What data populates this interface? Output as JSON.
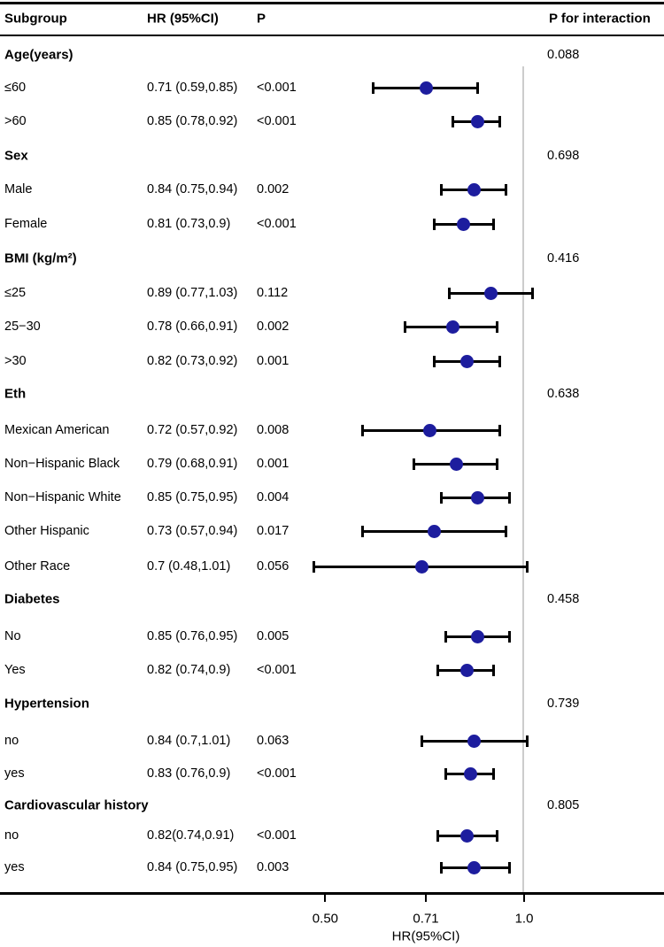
{
  "header": {
    "subgroup": "Subgroup",
    "hr_ci": "HR (95%CI)",
    "p": "P",
    "p_interaction": "P for interaction"
  },
  "chart_data": {
    "type": "forest",
    "x_scale": "log",
    "axis": {
      "label": "HR(95%CI)",
      "ticks": [
        {
          "value": 0.5,
          "label": "0.50"
        },
        {
          "value": 0.71,
          "label": "0.71"
        },
        {
          "value": 1.0,
          "label": "1.0"
        }
      ],
      "reference_line": 1.0,
      "xlim": [
        0.44,
        1.3
      ]
    },
    "rows": [
      {
        "type": "group",
        "label": "Age(years)",
        "p_interaction": "0.088"
      },
      {
        "type": "item",
        "label": "≤60",
        "hr_ci": "0.71 (0.59,0.85)",
        "p": "<0.001",
        "hr": 0.71,
        "ci_low": 0.59,
        "ci_high": 0.85
      },
      {
        "type": "item",
        "label": ">60",
        "hr_ci": "0.85 (0.78,0.92)",
        "p": "<0.001",
        "hr": 0.85,
        "ci_low": 0.78,
        "ci_high": 0.92
      },
      {
        "type": "group",
        "label": "Sex",
        "p_interaction": "0.698"
      },
      {
        "type": "item",
        "label": "Male",
        "hr_ci": "0.84 (0.75,0.94)",
        "p": "0.002",
        "hr": 0.84,
        "ci_low": 0.75,
        "ci_high": 0.94
      },
      {
        "type": "item",
        "label": "Female",
        "hr_ci": "0.81 (0.73,0.9)",
        "p": "<0.001",
        "hr": 0.81,
        "ci_low": 0.73,
        "ci_high": 0.9
      },
      {
        "type": "group",
        "label": "BMI (kg/m²)",
        "p_interaction": "0.416"
      },
      {
        "type": "item",
        "label": "≤25",
        "hr_ci": "0.89 (0.77,1.03)",
        "p": "0.112",
        "hr": 0.89,
        "ci_low": 0.77,
        "ci_high": 1.03
      },
      {
        "type": "item",
        "label": "25−30",
        "hr_ci": "0.78 (0.66,0.91)",
        "p": "0.002",
        "hr": 0.78,
        "ci_low": 0.66,
        "ci_high": 0.91
      },
      {
        "type": "item",
        "label": ">30",
        "hr_ci": "0.82 (0.73,0.92)",
        "p": "0.001",
        "hr": 0.82,
        "ci_low": 0.73,
        "ci_high": 0.92
      },
      {
        "type": "group",
        "label": "Eth",
        "p_interaction": "0.638"
      },
      {
        "type": "item",
        "label": "Mexican American",
        "hr_ci": "0.72 (0.57,0.92)",
        "p": "0.008",
        "hr": 0.72,
        "ci_low": 0.57,
        "ci_high": 0.92
      },
      {
        "type": "item",
        "label": "Non−Hispanic Black",
        "hr_ci": "0.79 (0.68,0.91)",
        "p": "0.001",
        "hr": 0.79,
        "ci_low": 0.68,
        "ci_high": 0.91
      },
      {
        "type": "item",
        "label": "Non−Hispanic White",
        "hr_ci": "0.85 (0.75,0.95)",
        "p": "0.004",
        "hr": 0.85,
        "ci_low": 0.75,
        "ci_high": 0.95
      },
      {
        "type": "item",
        "label": "Other Hispanic",
        "hr_ci": "0.73 (0.57,0.94)",
        "p": "0.017",
        "hr": 0.73,
        "ci_low": 0.57,
        "ci_high": 0.94
      },
      {
        "type": "item",
        "label": "Other Race",
        "hr_ci": "0.7 (0.48,1.01)",
        "p": "0.056",
        "hr": 0.7,
        "ci_low": 0.48,
        "ci_high": 1.01
      },
      {
        "type": "group",
        "label": "Diabetes",
        "p_interaction": "0.458"
      },
      {
        "type": "item",
        "label": "No",
        "hr_ci": "0.85 (0.76,0.95)",
        "p": "0.005",
        "hr": 0.85,
        "ci_low": 0.76,
        "ci_high": 0.95
      },
      {
        "type": "item",
        "label": "Yes",
        "hr_ci": "0.82 (0.74,0.9)",
        "p": "<0.001",
        "hr": 0.82,
        "ci_low": 0.74,
        "ci_high": 0.9
      },
      {
        "type": "group",
        "label": "Hypertension",
        "p_interaction": "0.739"
      },
      {
        "type": "item",
        "label": "no",
        "hr_ci": "0.84 (0.7,1.01)",
        "p": "0.063",
        "hr": 0.84,
        "ci_low": 0.7,
        "ci_high": 1.01
      },
      {
        "type": "item",
        "label": "yes",
        "hr_ci": "0.83 (0.76,0.9)",
        "p": "<0.001",
        "hr": 0.83,
        "ci_low": 0.76,
        "ci_high": 0.9
      },
      {
        "type": "group",
        "label": "Cardiovascular history",
        "p_interaction": "0.805"
      },
      {
        "type": "item",
        "label": "no",
        "hr_ci": "0.82(0.74,0.91)",
        "p": "<0.001",
        "hr": 0.82,
        "ci_low": 0.74,
        "ci_high": 0.91
      },
      {
        "type": "item",
        "label": "yes",
        "hr_ci": "0.84 (0.75,0.95)",
        "p": "0.003",
        "hr": 0.84,
        "ci_low": 0.75,
        "ci_high": 0.95
      }
    ]
  },
  "colors": {
    "marker": "#1d1d9e",
    "ci_line": "#000000",
    "reference_line": "#cccccc",
    "text": "#000000",
    "rule": "#000000"
  }
}
